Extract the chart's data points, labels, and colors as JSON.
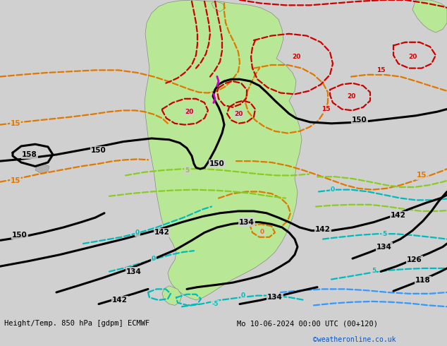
{
  "title_left": "Height/Temp. 850 hPa [gdpm] ECMWF",
  "title_right": "Mo 10-06-2024 00:00 UTC (00+120)",
  "credit": "©weatheronline.co.uk",
  "bg_color": "#d0d0d0",
  "land_color": "#b8e896",
  "border_color": "#888888",
  "fig_width": 6.34,
  "fig_height": 4.9,
  "dpi": 100,
  "black_lw": 2.2,
  "colored_lw": 1.6,
  "label_fontsize": 7.5
}
